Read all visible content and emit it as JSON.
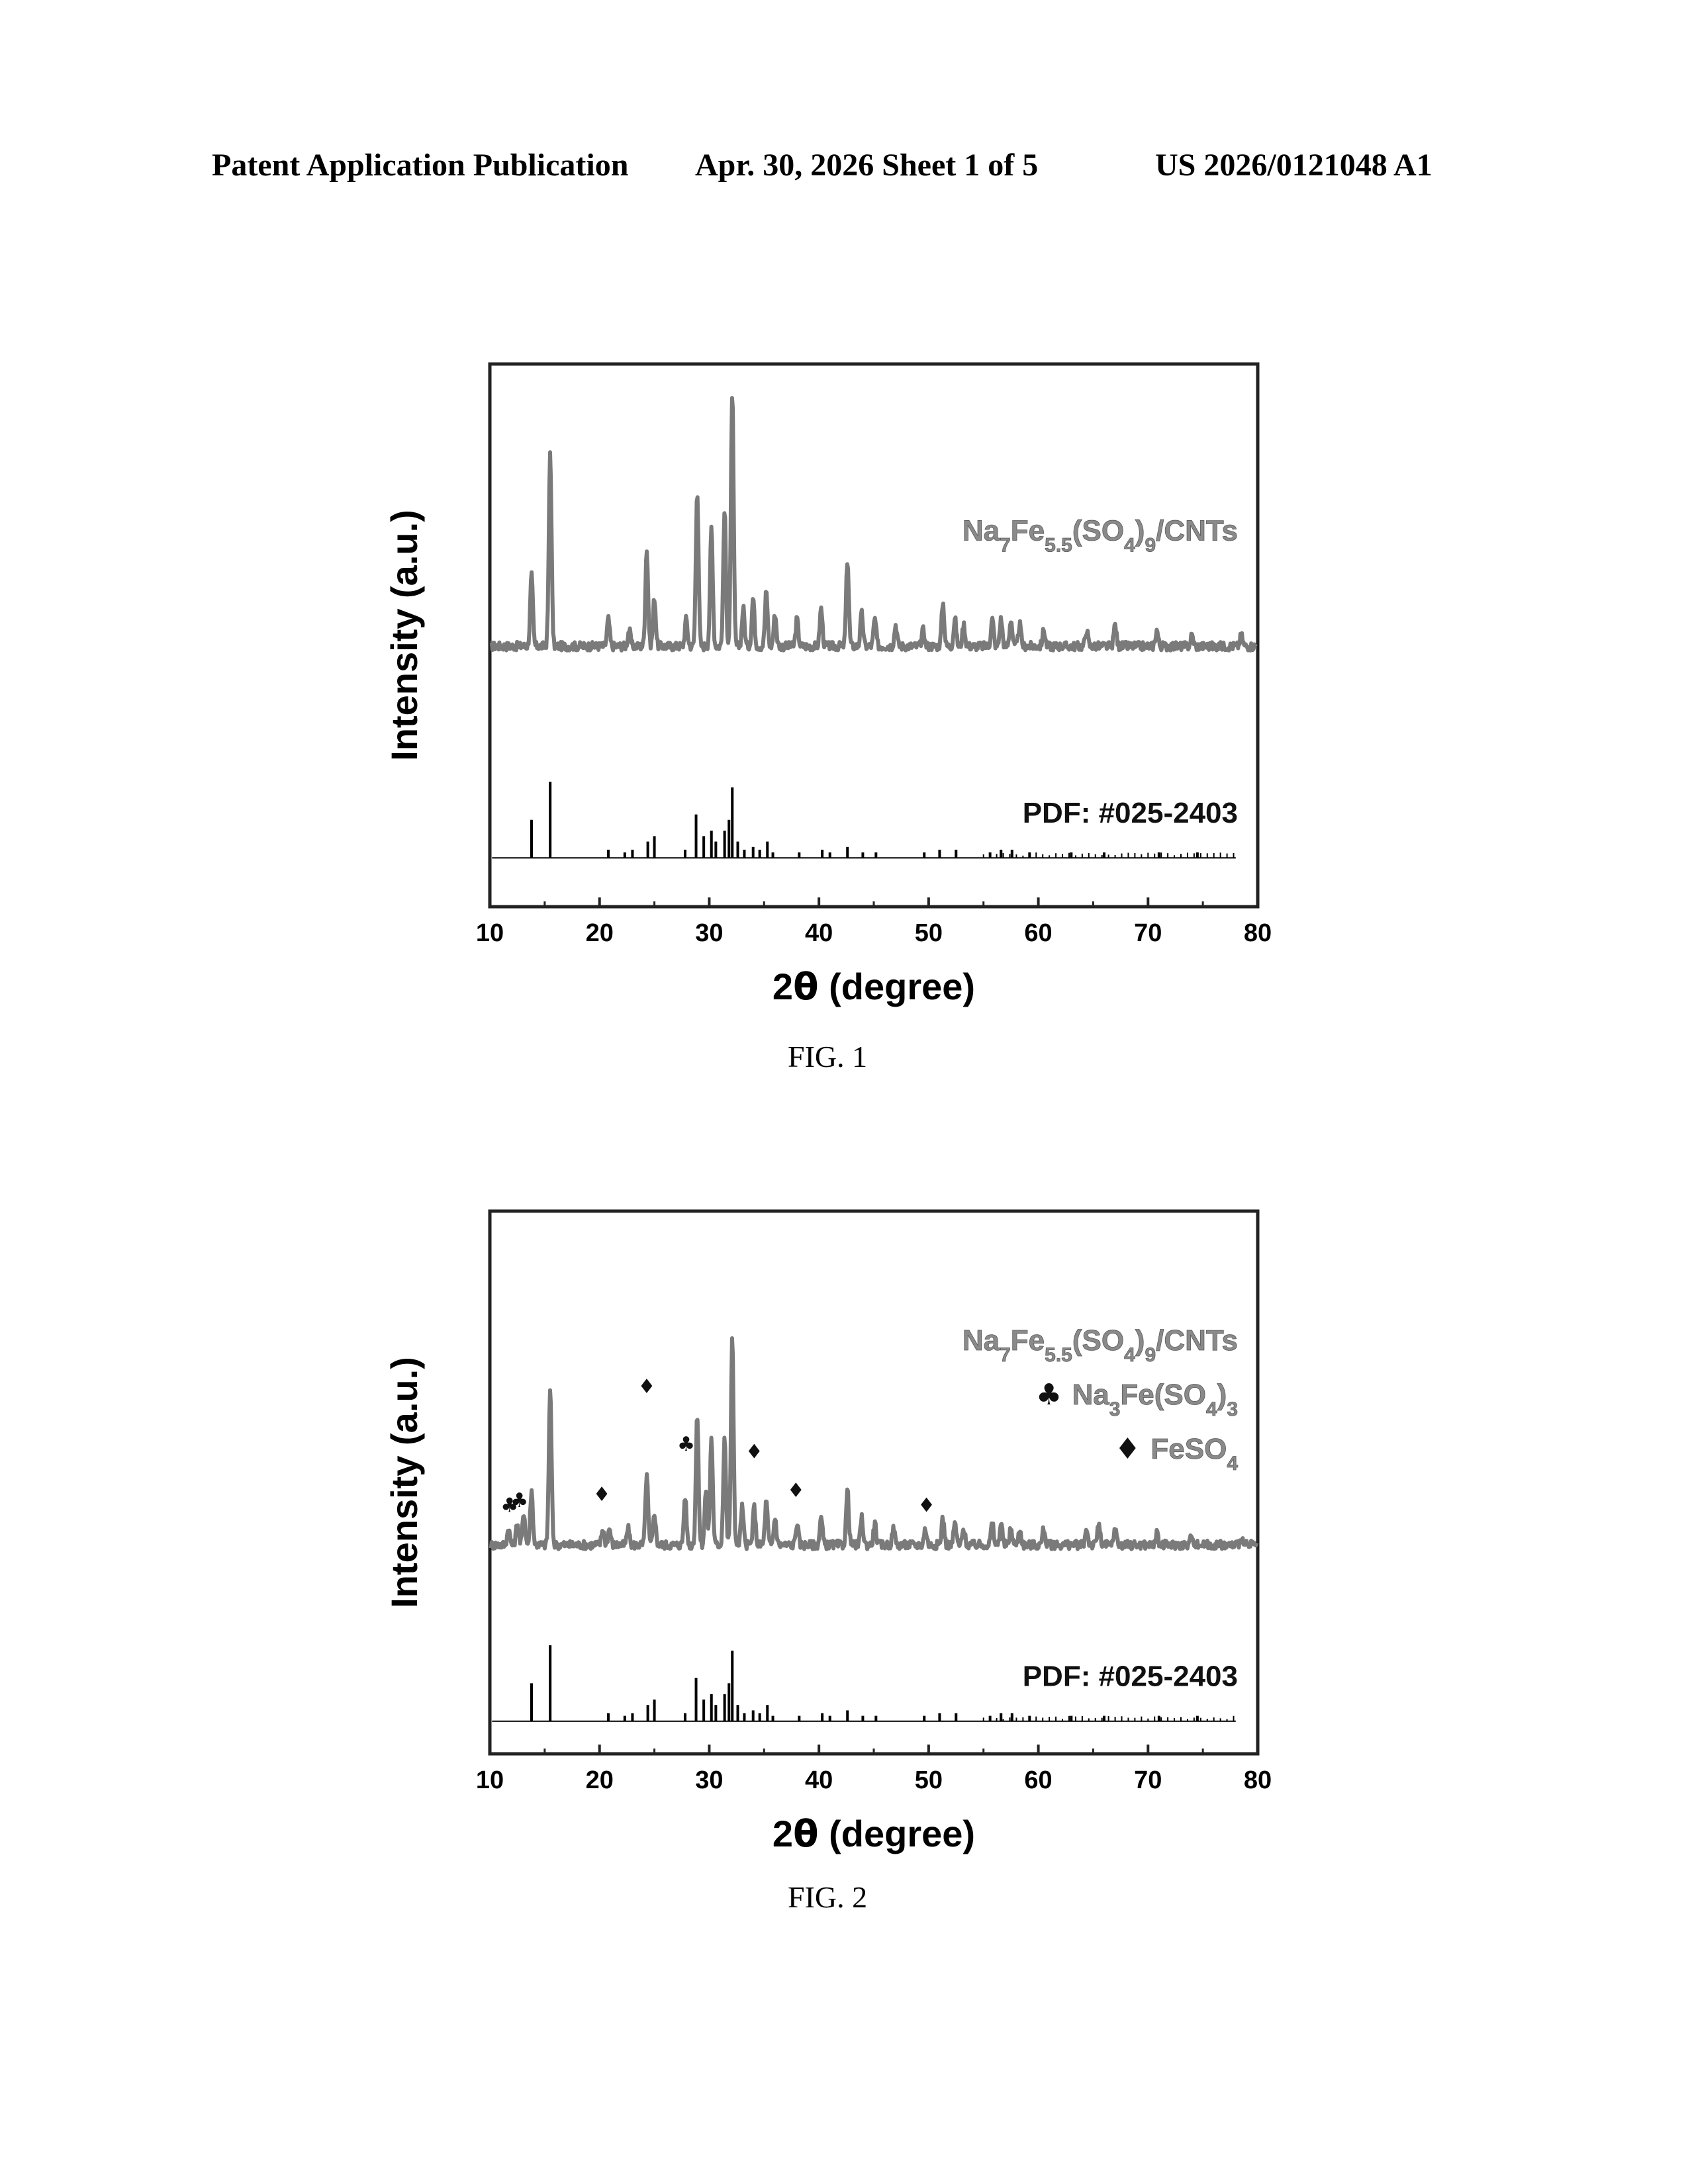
{
  "header": {
    "left": "Patent Application Publication",
    "date_sheet": "Apr. 30, 2026  Sheet 1 of 5",
    "pub_number": "US 2026/0121048 A1"
  },
  "chart_data": [
    {
      "type": "line",
      "caption": "FIG. 1",
      "xlabel_main": "2",
      "xlabel_theta": "θ",
      "xlabel_rest": " (degree)",
      "ylabel": "Intensity (a.u.)",
      "xlim": [
        10,
        80
      ],
      "xticks": [
        "10",
        "20",
        "30",
        "40",
        "50",
        "60",
        "70",
        "80"
      ],
      "series": [
        {
          "label_main": "Na",
          "label_parts": [
            [
              "Na",
              ""
            ],
            [
              "7",
              "sub"
            ],
            [
              "Fe",
              ""
            ],
            [
              "5.5",
              "sub"
            ],
            [
              "(SO",
              ""
            ],
            [
              "4",
              "sub"
            ],
            [
              ")",
              ""
            ],
            [
              "9",
              "sub"
            ],
            [
              "/CNTs",
              ""
            ]
          ],
          "color": "#7a7a7a",
          "baseline": 0.48,
          "peaks": [
            [
              13.8,
              0.13
            ],
            [
              15.5,
              0.36
            ],
            [
              20.8,
              0.05
            ],
            [
              22.7,
              0.03
            ],
            [
              24.3,
              0.18
            ],
            [
              25.0,
              0.09
            ],
            [
              27.9,
              0.05
            ],
            [
              28.9,
              0.29
            ],
            [
              30.2,
              0.22
            ],
            [
              31.4,
              0.25
            ],
            [
              32.1,
              0.47
            ],
            [
              33.1,
              0.07
            ],
            [
              34.0,
              0.09
            ],
            [
              35.2,
              0.1
            ],
            [
              36.0,
              0.06
            ],
            [
              38.0,
              0.05
            ],
            [
              40.2,
              0.07
            ],
            [
              42.6,
              0.16
            ],
            [
              43.9,
              0.06
            ],
            [
              45.1,
              0.05
            ],
            [
              47.0,
              0.04
            ],
            [
              49.5,
              0.03
            ],
            [
              51.3,
              0.08
            ],
            [
              52.4,
              0.05
            ],
            [
              53.2,
              0.04
            ],
            [
              55.8,
              0.05
            ],
            [
              56.6,
              0.05
            ],
            [
              57.5,
              0.05
            ],
            [
              58.3,
              0.04
            ],
            [
              60.5,
              0.03
            ],
            [
              64.4,
              0.03
            ],
            [
              67.0,
              0.04
            ],
            [
              70.8,
              0.03
            ],
            [
              74.0,
              0.02
            ],
            [
              78.5,
              0.02
            ]
          ]
        },
        {
          "label": "PDF: #025-2403",
          "color": "#000000",
          "baseline": 0.09,
          "sticks": [
            [
              13.8,
              0.07
            ],
            [
              15.5,
              0.14
            ],
            [
              20.8,
              0.015
            ],
            [
              22.3,
              0.01
            ],
            [
              23.0,
              0.015
            ],
            [
              24.4,
              0.03
            ],
            [
              25.0,
              0.04
            ],
            [
              27.8,
              0.015
            ],
            [
              28.8,
              0.08
            ],
            [
              29.5,
              0.04
            ],
            [
              30.2,
              0.05
            ],
            [
              30.6,
              0.03
            ],
            [
              31.4,
              0.05
            ],
            [
              31.8,
              0.07
            ],
            [
              32.1,
              0.13
            ],
            [
              32.6,
              0.03
            ],
            [
              33.2,
              0.015
            ],
            [
              34.0,
              0.02
            ],
            [
              34.6,
              0.015
            ],
            [
              35.3,
              0.03
            ],
            [
              35.8,
              0.01
            ],
            [
              38.2,
              0.01
            ],
            [
              40.3,
              0.015
            ],
            [
              41.0,
              0.01
            ],
            [
              42.6,
              0.02
            ],
            [
              44.0,
              0.01
            ],
            [
              45.2,
              0.01
            ],
            [
              49.6,
              0.01
            ],
            [
              51.0,
              0.015
            ],
            [
              52.5,
              0.015
            ],
            [
              55.6,
              0.01
            ],
            [
              56.6,
              0.015
            ],
            [
              57.6,
              0.015
            ],
            [
              59.2,
              0.01
            ],
            [
              63.0,
              0.01
            ],
            [
              66.0,
              0.01
            ],
            [
              71.0,
              0.01
            ],
            [
              74.5,
              0.01
            ]
          ]
        }
      ]
    },
    {
      "type": "line",
      "caption": "FIG. 2",
      "xlabel_main": "2",
      "xlabel_theta": "θ",
      "xlabel_rest": " (degree)",
      "ylabel": "Intensity (a.u.)",
      "xlim": [
        10,
        80
      ],
      "xticks": [
        "10",
        "20",
        "30",
        "40",
        "50",
        "60",
        "70",
        "80"
      ],
      "legend": [
        {
          "label_parts": [
            [
              "Na",
              ""
            ],
            [
              "7",
              "sub"
            ],
            [
              "Fe",
              ""
            ],
            [
              "5.5",
              "sub"
            ],
            [
              "(SO",
              ""
            ],
            [
              "4",
              "sub"
            ],
            [
              ")",
              ""
            ],
            [
              "9",
              "sub"
            ],
            [
              "/CNTs",
              ""
            ]
          ],
          "symbol": ""
        },
        {
          "symbol": "♣",
          "label_parts": [
            [
              "Na",
              ""
            ],
            [
              "3",
              "sub"
            ],
            [
              "Fe(SO",
              ""
            ],
            [
              "4",
              "sub"
            ],
            [
              ")",
              ""
            ],
            [
              "3",
              "sub"
            ]
          ]
        },
        {
          "symbol": "♦",
          "label_parts": [
            [
              "FeSO",
              ""
            ],
            [
              "4",
              "sub"
            ]
          ]
        }
      ],
      "series": [
        {
          "color": "#7a7a7a",
          "baseline": 0.385,
          "peaks": [
            [
              11.7,
              0.03
            ],
            [
              12.5,
              0.04
            ],
            [
              13.1,
              0.06
            ],
            [
              13.8,
              0.1
            ],
            [
              15.5,
              0.29
            ],
            [
              20.3,
              0.03
            ],
            [
              20.9,
              0.03
            ],
            [
              22.6,
              0.03
            ],
            [
              24.3,
              0.13
            ],
            [
              25.0,
              0.06
            ],
            [
              27.8,
              0.09
            ],
            [
              28.9,
              0.24
            ],
            [
              29.7,
              0.1
            ],
            [
              30.2,
              0.2
            ],
            [
              31.4,
              0.2
            ],
            [
              32.1,
              0.38
            ],
            [
              33.0,
              0.07
            ],
            [
              34.1,
              0.07
            ],
            [
              35.2,
              0.08
            ],
            [
              36.0,
              0.05
            ],
            [
              38.0,
              0.04
            ],
            [
              40.2,
              0.05
            ],
            [
              42.6,
              0.1
            ],
            [
              43.9,
              0.05
            ],
            [
              45.1,
              0.04
            ],
            [
              46.8,
              0.03
            ],
            [
              49.7,
              0.03
            ],
            [
              51.3,
              0.05
            ],
            [
              52.4,
              0.04
            ],
            [
              53.2,
              0.03
            ],
            [
              55.8,
              0.04
            ],
            [
              56.6,
              0.04
            ],
            [
              57.5,
              0.03
            ],
            [
              58.3,
              0.03
            ],
            [
              60.5,
              0.03
            ],
            [
              64.4,
              0.03
            ],
            [
              65.5,
              0.04
            ],
            [
              67.0,
              0.03
            ],
            [
              70.8,
              0.02
            ],
            [
              74.0,
              0.02
            ],
            [
              78.5,
              0.015
            ]
          ],
          "markers": [
            {
              "symbol": "♣",
              "x": 11.8,
              "dy": 0.03
            },
            {
              "symbol": "♣",
              "x": 12.7,
              "dy": 0.05
            },
            {
              "symbol": "♦",
              "x": 20.2,
              "dy": 0.05
            },
            {
              "symbol": "♦",
              "x": 24.3,
              "dy": 0.14
            },
            {
              "symbol": "♣",
              "x": 27.9,
              "dy": 0.1
            },
            {
              "symbol": "♦",
              "x": 34.1,
              "dy": 0.08
            },
            {
              "symbol": "♦",
              "x": 37.9,
              "dy": 0.05
            },
            {
              "symbol": "♦",
              "x": 49.8,
              "dy": 0.03
            }
          ]
        },
        {
          "label": "PDF: #025-2403",
          "color": "#000000",
          "baseline": 0.06,
          "sticks": [
            [
              13.8,
              0.07
            ],
            [
              15.5,
              0.14
            ],
            [
              20.8,
              0.015
            ],
            [
              22.3,
              0.01
            ],
            [
              23.0,
              0.015
            ],
            [
              24.4,
              0.03
            ],
            [
              25.0,
              0.04
            ],
            [
              27.8,
              0.015
            ],
            [
              28.8,
              0.08
            ],
            [
              29.5,
              0.04
            ],
            [
              30.2,
              0.05
            ],
            [
              30.6,
              0.03
            ],
            [
              31.4,
              0.05
            ],
            [
              31.8,
              0.07
            ],
            [
              32.1,
              0.13
            ],
            [
              32.6,
              0.03
            ],
            [
              33.2,
              0.015
            ],
            [
              34.0,
              0.02
            ],
            [
              34.6,
              0.015
            ],
            [
              35.3,
              0.03
            ],
            [
              35.8,
              0.01
            ],
            [
              38.2,
              0.01
            ],
            [
              40.3,
              0.015
            ],
            [
              41.0,
              0.01
            ],
            [
              42.6,
              0.02
            ],
            [
              44.0,
              0.01
            ],
            [
              45.2,
              0.01
            ],
            [
              49.6,
              0.01
            ],
            [
              51.0,
              0.015
            ],
            [
              52.5,
              0.015
            ],
            [
              55.6,
              0.01
            ],
            [
              56.6,
              0.015
            ],
            [
              57.6,
              0.015
            ],
            [
              59.2,
              0.01
            ],
            [
              63.0,
              0.01
            ],
            [
              66.0,
              0.01
            ],
            [
              71.0,
              0.01
            ],
            [
              74.5,
              0.01
            ]
          ]
        }
      ]
    }
  ]
}
